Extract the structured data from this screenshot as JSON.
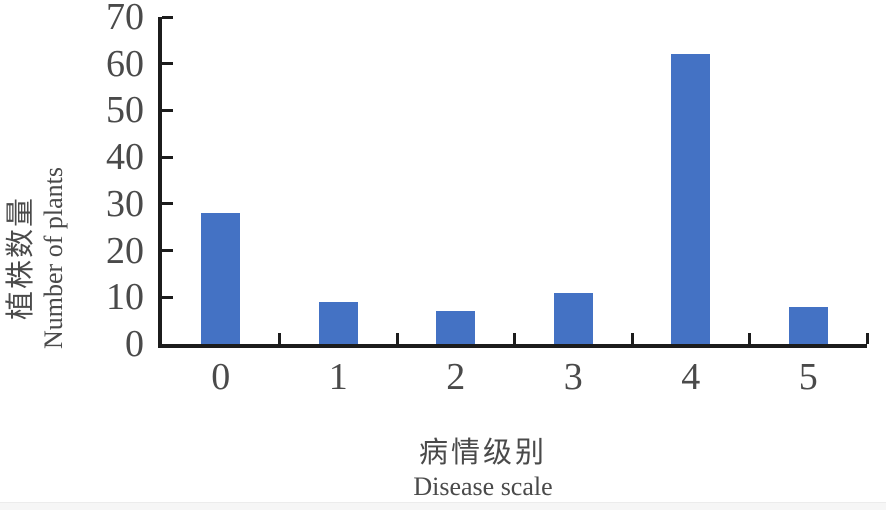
{
  "figure": {
    "background": "#ffffff"
  },
  "chart_data": {
    "type": "bar",
    "title": "",
    "categories": [
      "0",
      "1",
      "2",
      "3",
      "4",
      "5"
    ],
    "values": [
      28,
      9,
      7,
      11,
      62,
      8
    ],
    "ylim": [
      0,
      70
    ],
    "y_ticks": [
      70,
      60,
      50,
      40,
      30,
      20,
      10,
      0
    ],
    "xlabel_zh": "病情级别",
    "xlabel_en": "Disease scale",
    "ylabel_zh": "植株数量",
    "ylabel_en": "Number of plants",
    "bar_color": "#4472C4",
    "axis_color": "#1c1c1c",
    "label_color": "#4a4a4a",
    "grid": false,
    "legend": "none",
    "tick_style": "inside"
  }
}
